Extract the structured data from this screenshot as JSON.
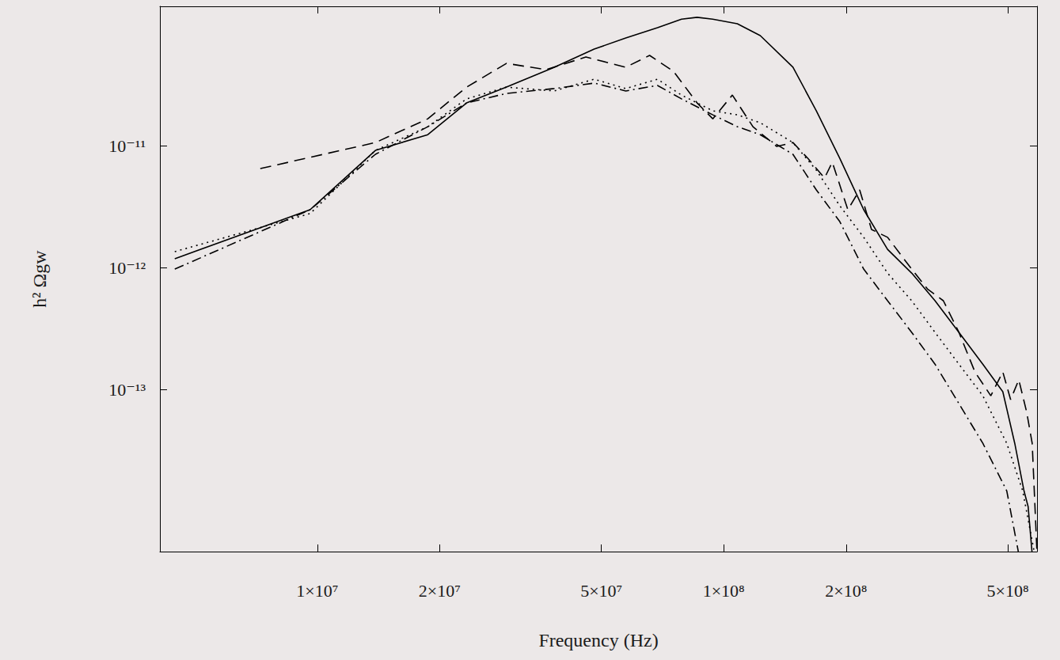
{
  "chart_data": {
    "type": "line",
    "xlabel": "Frequency (Hz)",
    "ylabel": "h² Ωgw",
    "log": true,
    "grid": false,
    "xlim": [
      4100000.0,
      590000000.0
    ],
    "ylim": [
      4.67e-15,
      1.39e-10
    ],
    "xticks": [
      {
        "value": 10000000.0,
        "label": "1×10⁷"
      },
      {
        "value": 20000000.0,
        "label": "2×10⁷"
      },
      {
        "value": 50000000.0,
        "label": "5×10⁷"
      },
      {
        "value": 100000000.0,
        "label": "1×10⁸"
      },
      {
        "value": 200000000.0,
        "label": "2×10⁸"
      },
      {
        "value": 500000000.0,
        "label": "5×10⁸"
      }
    ],
    "yticks": [
      {
        "value": 1e-11,
        "label": "10⁻¹¹"
      },
      {
        "value": 1e-12,
        "label": "10⁻¹²"
      },
      {
        "value": 1e-13,
        "label": "10⁻¹³"
      }
    ],
    "series": [
      {
        "line_style": "solid",
        "color": "#000000",
        "x": [
          4460000.0,
          9600000.0,
          13900000.0,
          18700000.0,
          23300000.0,
          29200000.0,
          38300000.0,
          48000000.0,
          57400000.0,
          68700000.0,
          78700000.0,
          86000000.0,
          94000000.0,
          108000000.0,
          123000000.0,
          148000000.0,
          169000000.0,
          193000000.0,
          221000000.0,
          253000000.0,
          290000000.0,
          331000000.0,
          379000000.0,
          434000000.0,
          486000000.0,
          520000000.0,
          548000000.0,
          561000000.0,
          574000000.0
        ],
        "values": [
          1.18e-12,
          2.98e-12,
          9.14e-12,
          1.23e-11,
          2.24e-11,
          3.02e-11,
          4.4e-11,
          6.2e-11,
          7.64e-11,
          9.28e-11,
          1.09e-10,
          1.13e-10,
          1.09e-10,
          1e-10,
          8e-11,
          4.4e-11,
          1.93e-11,
          7.87e-12,
          2.98e-12,
          1.41e-12,
          9e-13,
          5.34e-13,
          2.94e-13,
          1.61e-13,
          9.57e-14,
          3.61e-14,
          1.47e-14,
          1.09e-14,
          4.46e-15
        ]
      },
      {
        "line_style": "dashed",
        "color": "#000000",
        "x": [
          7240000.0,
          13900000.0,
          18700000.0,
          23300000.0,
          29200000.0,
          36600000.0,
          45800000.0,
          57400000.0,
          65700000.0,
          75200000.0,
          86000000.0,
          94000000.0,
          105000000.0,
          118000000.0,
          135000000.0,
          148000000.0,
          161000000.0,
          177000000.0,
          185000000.0,
          202000000.0,
          216000000.0,
          231000000.0,
          253000000.0,
          290000000.0,
          317000000.0,
          347000000.0,
          379000000.0,
          415000000.0,
          454000000.0,
          486000000.0,
          508000000.0,
          532000000.0,
          556000000.0,
          574000000.0,
          590000000.0
        ],
        "values": [
          6.48e-12,
          1.06e-11,
          1.66e-11,
          3.02e-11,
          4.73e-11,
          4.2e-11,
          5.34e-11,
          4.4e-11,
          5.5e-11,
          4.08e-11,
          2.24e-11,
          1.66e-11,
          2.6e-11,
          1.43e-11,
          9.85e-12,
          1.06e-11,
          7.87e-12,
          5.42e-12,
          7.31e-12,
          2.98e-12,
          4.33e-12,
          2.05e-12,
          1.77e-12,
          9.7e-13,
          6.68e-13,
          5.34e-13,
          2.94e-13,
          1.39e-13,
          8.87e-14,
          1.39e-13,
          8.24e-14,
          1.2e-13,
          6.58e-14,
          3.61e-14,
          4.46e-15
        ]
      },
      {
        "line_style": "dotted",
        "color": "#000000",
        "x": [
          4460000.0,
          9600000.0,
          13900000.0,
          18700000.0,
          23300000.0,
          29200000.0,
          38300000.0,
          48000000.0,
          57400000.0,
          68700000.0,
          78700000.0,
          94000000.0,
          108000000.0,
          123000000.0,
          148000000.0,
          169000000.0,
          193000000.0,
          221000000.0,
          253000000.0,
          290000000.0,
          331000000.0,
          379000000.0,
          434000000.0,
          497000000.0,
          544000000.0,
          582000000.0
        ],
        "values": [
          1.35e-12,
          2.77e-12,
          9.14e-12,
          1.43e-11,
          2.42e-11,
          3.02e-11,
          2.81e-11,
          3.51e-11,
          2.94e-11,
          3.51e-11,
          2.6e-11,
          1.93e-11,
          1.79e-11,
          1.54e-11,
          1.06e-11,
          6.29e-12,
          3.21e-12,
          1.77e-12,
          9e-13,
          5.34e-13,
          2.94e-13,
          1.61e-13,
          8.87e-14,
          3.61e-14,
          1.47e-14,
          4.46e-15
        ]
      },
      {
        "line_style": "dashdot",
        "color": "#000000",
        "x": [
          4460000.0,
          9600000.0,
          13900000.0,
          18700000.0,
          23300000.0,
          29200000.0,
          38300000.0,
          48000000.0,
          57400000.0,
          68700000.0,
          78700000.0,
          94000000.0,
          108000000.0,
          123000000.0,
          148000000.0,
          169000000.0,
          193000000.0,
          221000000.0,
          253000000.0,
          290000000.0,
          331000000.0,
          379000000.0,
          434000000.0,
          497000000.0,
          532000000.0
        ],
        "values": [
          9.7e-13,
          2.98e-12,
          8.49e-12,
          1.43e-11,
          2.24e-11,
          2.68e-11,
          2.94e-11,
          3.26e-11,
          2.81e-11,
          3.12e-11,
          2.42e-11,
          1.79e-11,
          1.43e-11,
          1.23e-11,
          8.49e-12,
          4.33e-12,
          2.38e-12,
          9.7e-13,
          5.34e-13,
          2.94e-13,
          1.61e-13,
          7.64e-14,
          3.61e-14,
          1.47e-14,
          4.46e-15
        ]
      }
    ]
  }
}
